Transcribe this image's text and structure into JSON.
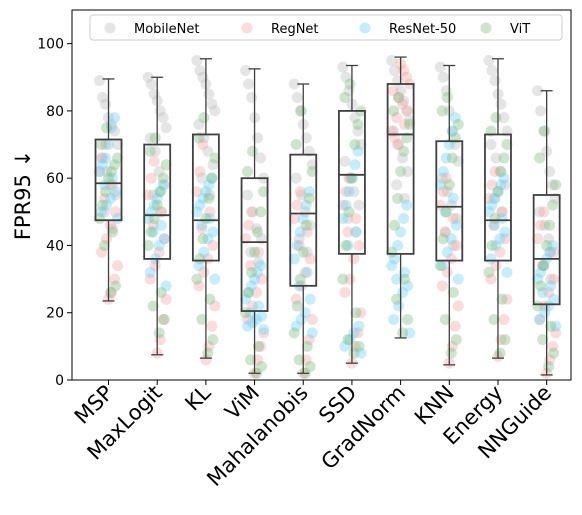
{
  "chart_data": {
    "type": "box-strip",
    "ylabel": "FPR95 ↓",
    "ylim": [
      0,
      110
    ],
    "yticks": [
      0,
      20,
      40,
      60,
      80,
      100
    ],
    "categories": [
      "MSP",
      "MaxLogit",
      "KL",
      "ViM",
      "Mahalanobis",
      "SSD",
      "GradNorm",
      "KNN",
      "Energy",
      "NNGuide"
    ],
    "boxes": [
      {
        "whislo": 23.5,
        "q1": 47.5,
        "med": 58.5,
        "q3": 71.5,
        "whishi": 89.5
      },
      {
        "whislo": 7.5,
        "q1": 36,
        "med": 49,
        "q3": 70,
        "whishi": 90
      },
      {
        "whislo": 6.5,
        "q1": 35.5,
        "med": 47.5,
        "q3": 73,
        "whishi": 95.5
      },
      {
        "whislo": 2,
        "q1": 20.5,
        "med": 41,
        "q3": 60,
        "whishi": 92.5
      },
      {
        "whislo": 2,
        "q1": 28,
        "med": 49.5,
        "q3": 67,
        "whishi": 88
      },
      {
        "whislo": 5,
        "q1": 37.5,
        "med": 61,
        "q3": 80,
        "whishi": 93.5
      },
      {
        "whislo": 12.5,
        "q1": 37.5,
        "med": 73,
        "q3": 88,
        "whishi": 96
      },
      {
        "whislo": 4.5,
        "q1": 35.5,
        "med": 51.5,
        "q3": 71,
        "whishi": 93.5
      },
      {
        "whislo": 6.5,
        "q1": 35.5,
        "med": 47.5,
        "q3": 73,
        "whishi": 95.5
      },
      {
        "whislo": 1.5,
        "q1": 22.5,
        "med": 36,
        "q3": 55,
        "whishi": 86
      }
    ],
    "series": [
      {
        "name": "MobileNet",
        "color": "#bfbfbf",
        "values": [
          [
            89,
            84,
            82,
            78,
            76,
            74,
            70,
            66,
            62,
            58,
            55,
            50,
            45
          ],
          [
            90,
            88,
            85,
            83,
            80,
            78,
            75,
            72,
            68,
            62,
            58,
            55,
            50
          ],
          [
            95,
            92,
            90,
            88,
            85,
            82,
            80,
            76,
            72,
            68,
            64,
            60,
            55
          ],
          [
            92,
            88,
            84,
            78,
            72,
            66,
            60,
            55,
            50,
            45,
            42,
            38,
            35
          ],
          [
            88,
            84,
            80,
            76,
            72,
            68,
            64,
            60,
            55,
            50,
            46,
            42,
            38
          ],
          [
            93,
            90,
            86,
            82,
            78,
            74,
            70,
            65,
            60,
            56,
            52,
            48,
            44
          ],
          [
            95,
            92,
            89,
            86,
            83,
            80,
            77,
            74,
            70,
            66,
            62,
            58,
            54
          ],
          [
            93,
            90,
            86,
            80,
            74,
            70,
            65,
            60,
            56,
            52,
            48,
            44,
            40
          ],
          [
            95,
            92,
            89,
            85,
            82,
            78,
            74,
            70,
            66,
            62,
            58,
            54,
            50
          ],
          [
            86,
            80,
            74,
            68,
            62,
            58,
            54,
            50,
            46,
            42,
            38,
            34,
            30
          ]
        ]
      },
      {
        "name": "RegNet",
        "color": "#f4a6a6",
        "values": [
          [
            24,
            26,
            30,
            34,
            38,
            42,
            46,
            50,
            54,
            58,
            62,
            66,
            70
          ],
          [
            8,
            12,
            18,
            24,
            30,
            34,
            38,
            42,
            46,
            50,
            55,
            60,
            65
          ],
          [
            6,
            10,
            16,
            22,
            28,
            32,
            36,
            40,
            45,
            50,
            56,
            62,
            70
          ],
          [
            2,
            6,
            10,
            14,
            18,
            22,
            26,
            30,
            34,
            38,
            42,
            46,
            50
          ],
          [
            2,
            6,
            12,
            18,
            24,
            28,
            32,
            36,
            40,
            44,
            48,
            52,
            56
          ],
          [
            5,
            10,
            14,
            20,
            26,
            30,
            36,
            40,
            44,
            48,
            52,
            56,
            60
          ],
          [
            94,
            92,
            90,
            88,
            86,
            84,
            82,
            80,
            78,
            76,
            74,
            72,
            70
          ],
          [
            5,
            10,
            16,
            22,
            28,
            32,
            36,
            40,
            44,
            48,
            52,
            56,
            60
          ],
          [
            7,
            12,
            18,
            24,
            30,
            34,
            38,
            42,
            46,
            50,
            54,
            58,
            62
          ],
          [
            2,
            6,
            10,
            14,
            18,
            22,
            26,
            30,
            34,
            38,
            42,
            46,
            50
          ]
        ]
      },
      {
        "name": "ResNet-50",
        "color": "#6fd3f5",
        "values": [
          [
            48,
            50,
            52,
            54,
            56,
            58,
            60,
            62,
            64,
            66,
            70,
            75,
            78
          ],
          [
            28,
            32,
            36,
            40,
            42,
            44,
            46,
            48,
            50,
            52,
            54,
            56,
            58
          ],
          [
            30,
            34,
            38,
            42,
            44,
            46,
            48,
            50,
            52,
            54,
            56,
            58,
            60
          ],
          [
            15,
            16,
            17,
            18,
            19,
            20,
            22,
            24,
            26,
            28,
            30,
            32,
            34
          ],
          [
            14,
            16,
            18,
            20,
            24,
            28,
            32,
            36,
            40,
            44,
            48,
            52,
            56
          ],
          [
            8,
            10,
            12,
            14,
            16,
            40,
            44,
            48,
            52,
            56,
            60,
            64,
            68
          ],
          [
            14,
            18,
            22,
            26,
            28,
            30,
            32,
            34,
            36,
            40,
            44,
            48,
            52
          ],
          [
            30,
            34,
            38,
            42,
            46,
            50,
            54,
            58,
            62,
            66,
            70,
            74,
            78
          ],
          [
            32,
            36,
            40,
            42,
            44,
            46,
            48,
            50,
            52,
            54,
            56,
            58,
            60
          ],
          [
            16,
            18,
            20,
            22,
            24,
            26,
            28,
            30,
            32,
            34,
            36,
            38,
            40
          ]
        ]
      },
      {
        "name": "ViT",
        "color": "#7fbf7f",
        "values": [
          [
            26,
            28,
            40,
            44,
            48,
            52,
            56,
            60,
            62,
            64,
            66,
            70,
            75
          ],
          [
            14,
            18,
            22,
            26,
            40,
            44,
            48,
            52,
            56,
            60,
            64,
            68,
            72
          ],
          [
            8,
            12,
            18,
            24,
            30,
            36,
            42,
            48,
            54,
            60,
            66,
            72,
            78
          ],
          [
            2,
            4,
            6,
            10,
            20,
            26,
            32,
            38,
            44,
            50,
            56,
            62,
            68
          ],
          [
            2,
            4,
            6,
            10,
            14,
            22,
            30,
            38,
            46,
            54,
            62,
            70,
            80
          ],
          [
            8,
            10,
            12,
            20,
            30,
            40,
            50,
            60,
            70,
            76,
            80,
            84,
            88
          ],
          [
            14,
            18,
            24,
            30,
            38,
            46,
            54,
            62,
            68,
            72,
            76,
            80,
            84
          ],
          [
            8,
            12,
            18,
            26,
            34,
            42,
            50,
            58,
            66,
            72,
            76,
            80,
            84
          ],
          [
            8,
            12,
            18,
            24,
            32,
            40,
            48,
            56,
            62,
            66,
            70,
            74,
            78
          ],
          [
            4,
            8,
            12,
            16,
            22,
            28,
            34,
            40,
            46,
            52,
            58,
            66,
            74
          ]
        ]
      }
    ],
    "legend_position": "top"
  }
}
